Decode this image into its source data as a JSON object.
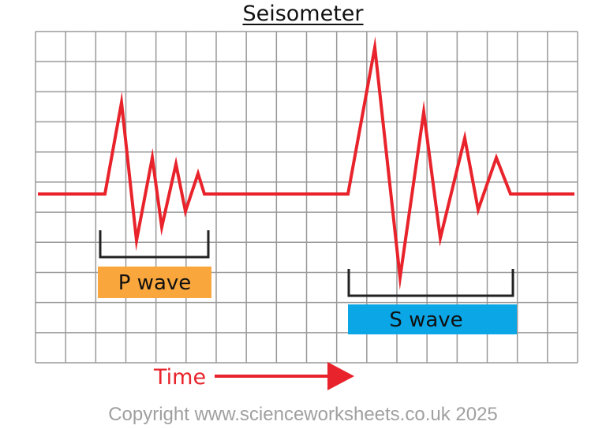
{
  "title": "Seisometer",
  "labels": {
    "p_wave": "P wave",
    "s_wave": "S wave",
    "time": "Time"
  },
  "copyright": "Copyright www.scienceworksheets.co.uk 2025",
  "colors": {
    "trace": "#e8232b",
    "grid": "#9a9a9a",
    "bracket": "#222222",
    "p_box": "#f9a73d",
    "s_box": "#0aa6e6",
    "time": "#e8232b",
    "copyright": "#a0a0a0"
  }
}
